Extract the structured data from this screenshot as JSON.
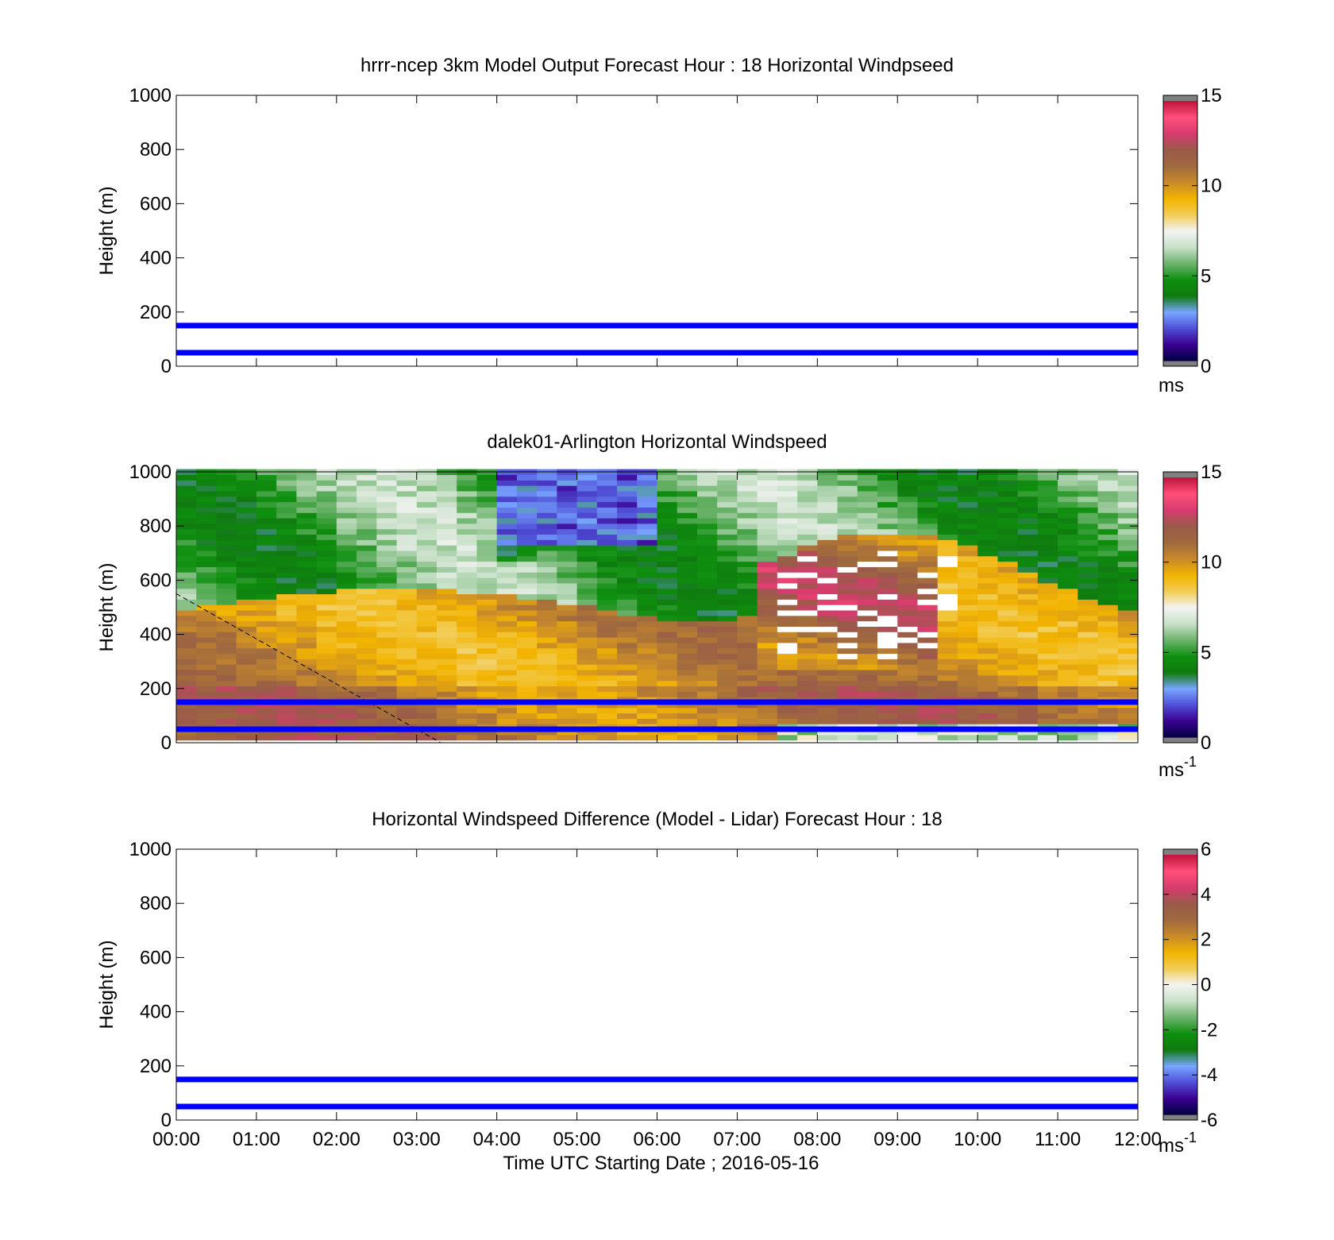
{
  "figure": {
    "xlabel": "Time UTC  Starting Date ; 2016-05-16",
    "xticks": [
      "00:00",
      "01:00",
      "02:00",
      "03:00",
      "04:00",
      "05:00",
      "06:00",
      "07:00",
      "08:00",
      "09:00",
      "10:00",
      "11:00",
      "12:00"
    ],
    "reference_heights_m": [
      50,
      150
    ],
    "reference_line_color": "#0000ff"
  },
  "chart_data": [
    {
      "type": "heatmap",
      "title": "hrrr-ncep 3km Model Output   Forecast Hour : 18 Horizontal Windpseed",
      "xlabel": "",
      "ylabel": "Height (m)",
      "xlim_hours": [
        0,
        12
      ],
      "ylim": [
        0,
        1000
      ],
      "yticks": [
        "0",
        "200",
        "400",
        "600",
        "800",
        "1000"
      ],
      "grid": false,
      "data_present": false,
      "hlines": [
        50,
        150
      ],
      "colorbar": {
        "range": [
          0,
          15
        ],
        "ticks": [
          "0",
          "5",
          "10",
          "15"
        ],
        "unit": "ms",
        "unit_exponent": ""
      }
    },
    {
      "type": "heatmap",
      "title": "dalek01-Arlington  Horizontal Windspeed",
      "xlabel": "",
      "ylabel": "Height (m)",
      "xlim_hours": [
        0,
        12
      ],
      "ylim": [
        0,
        1000
      ],
      "yticks": [
        "0",
        "200",
        "400",
        "600",
        "800",
        "1000"
      ],
      "grid": false,
      "data_present": true,
      "time_step_hours": 0.25,
      "height_step_m": 20,
      "value_unit": "m/s",
      "hlines": [
        50,
        150
      ],
      "dashed_line": {
        "from": [
          0,
          550
        ],
        "to": [
          3.3,
          0
        ]
      },
      "colorbar": {
        "range": [
          0,
          15
        ],
        "ticks": [
          "0",
          "5",
          "10",
          "15"
        ],
        "unit": "ms",
        "unit_exponent": "-1"
      }
    },
    {
      "type": "heatmap",
      "title": "Horizontal Windspeed Difference (Model - Lidar) Forecast Hour : 18",
      "xlabel": "Time UTC  Starting Date ; 2016-05-16",
      "ylabel": "Height (m)",
      "xlim_hours": [
        0,
        12
      ],
      "ylim": [
        0,
        1000
      ],
      "yticks": [
        "0",
        "200",
        "400",
        "600",
        "800",
        "1000"
      ],
      "grid": false,
      "data_present": false,
      "hlines": [
        50,
        150
      ],
      "colorbar": {
        "range": [
          -6,
          6
        ],
        "ticks": [
          "-6",
          "-4",
          "-2",
          "0",
          "2",
          "4",
          "6"
        ],
        "unit": "ms",
        "unit_exponent": "-1"
      }
    }
  ],
  "colormap": [
    "#808080",
    "#000040",
    "#3a0090",
    "#4f4fd6",
    "#78a6ff",
    "#0f7a0f",
    "#0f8f0f",
    "#6cb36c",
    "#c8e0c8",
    "#f4f4f4",
    "#f2cc55",
    "#f2b400",
    "#c88a2a",
    "#a06a3e",
    "#9a5a4a",
    "#d63c6e",
    "#ff4f7a",
    "#c0143c",
    "#808080"
  ]
}
